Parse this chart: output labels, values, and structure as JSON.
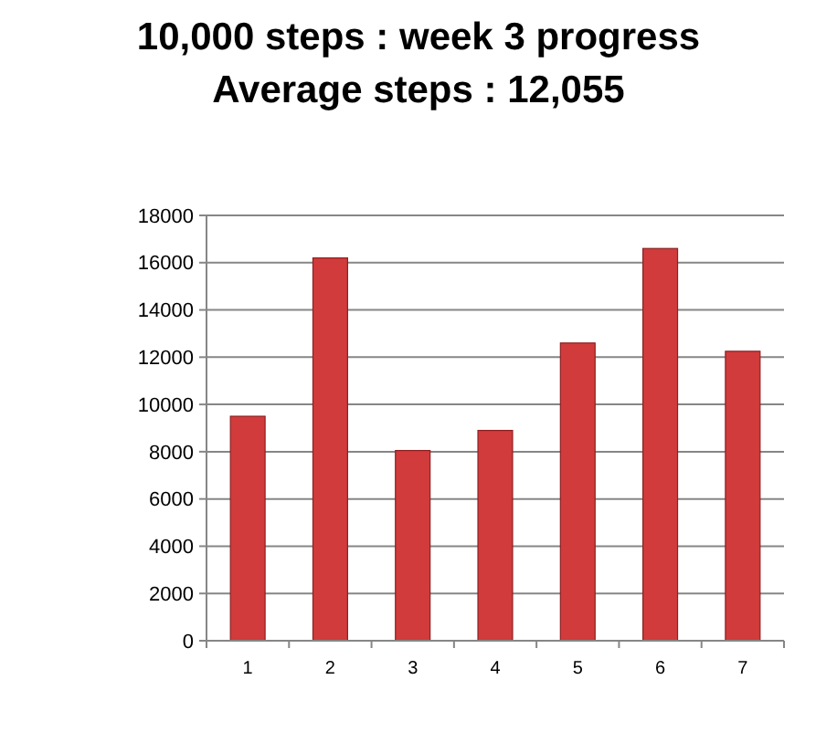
{
  "chart_data": {
    "type": "bar",
    "title": "10,000 steps : week 3 progress",
    "subtitle": "Average steps : 12,055",
    "categories": [
      "1",
      "2",
      "3",
      "4",
      "5",
      "6",
      "7"
    ],
    "values": [
      9500,
      16200,
      8050,
      8900,
      12600,
      16600,
      12250
    ],
    "color": "#d13b3b",
    "ylim": [
      0,
      18000
    ],
    "yticks": [
      0,
      2000,
      4000,
      6000,
      8000,
      10000,
      12000,
      14000,
      16000,
      18000
    ],
    "grid": "y"
  }
}
